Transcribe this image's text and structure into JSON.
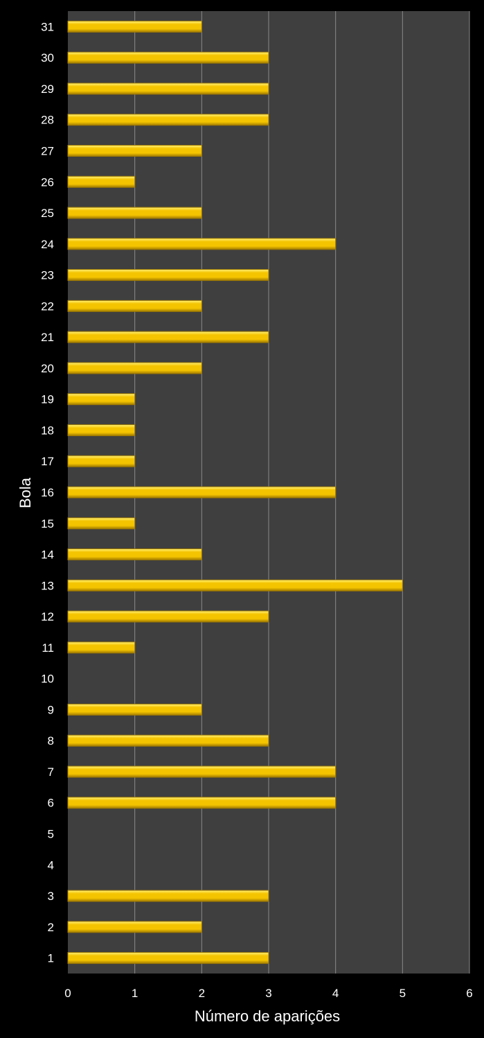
{
  "chart_data": {
    "type": "bar",
    "orientation": "horizontal",
    "title": "",
    "xlabel": "Número de aparições",
    "ylabel": "Bola",
    "xlim": [
      0,
      6
    ],
    "xticks": [
      0,
      1,
      2,
      3,
      4,
      5,
      6
    ],
    "grid": true,
    "legend": "none",
    "categories": [
      "1",
      "2",
      "3",
      "4",
      "5",
      "6",
      "7",
      "8",
      "9",
      "10",
      "11",
      "12",
      "13",
      "14",
      "15",
      "16",
      "17",
      "18",
      "19",
      "20",
      "21",
      "22",
      "23",
      "24",
      "25",
      "26",
      "27",
      "28",
      "29",
      "30",
      "31"
    ],
    "values": [
      3,
      2,
      3,
      0,
      0,
      4,
      4,
      3,
      2,
      0,
      1,
      3,
      5,
      2,
      1,
      4,
      1,
      1,
      1,
      2,
      3,
      2,
      3,
      4,
      2,
      1,
      2,
      3,
      3,
      3,
      2
    ],
    "colors": {
      "background": "#000000",
      "plot_area": "#3f3f3f",
      "gridline": "#8a8a8a",
      "bar": "#f5c400",
      "bar_highlight": "#fff27a",
      "bar_shadow": "#a07a00",
      "text": "#ffffff"
    }
  }
}
